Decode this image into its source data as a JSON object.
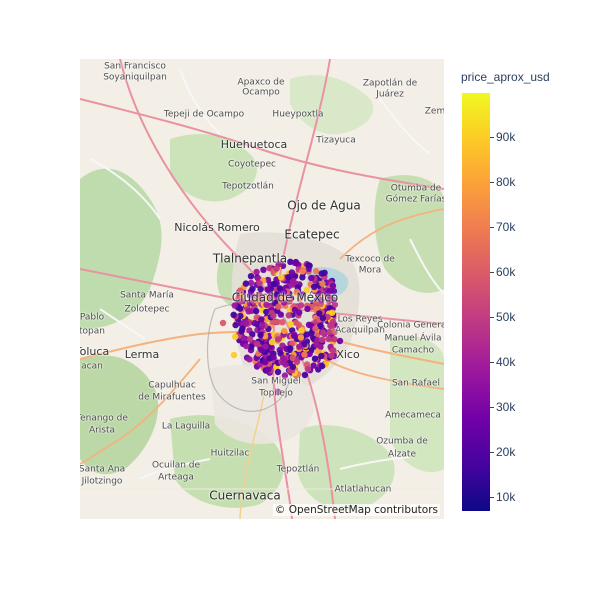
{
  "map": {
    "attribution": "© OpenStreetMap contributors",
    "labels": [
      {
        "text": "San Francisco",
        "cls": ""
      },
      {
        "text": "Soyaniquilpan",
        "cls": ""
      },
      {
        "text": "Apaxco de",
        "cls": ""
      },
      {
        "text": "Ocampo",
        "cls": ""
      },
      {
        "text": "Zapotlán de",
        "cls": ""
      },
      {
        "text": "Juárez",
        "cls": ""
      },
      {
        "text": "Tepeji de Ocampo",
        "cls": ""
      },
      {
        "text": "Hueypoxtla",
        "cls": ""
      },
      {
        "text": "Zem",
        "cls": ""
      },
      {
        "text": "Huehuetoca",
        "cls": "big"
      },
      {
        "text": "Tizayuca",
        "cls": ""
      },
      {
        "text": "Coyotepec",
        "cls": ""
      },
      {
        "text": "Tepotzotlán",
        "cls": ""
      },
      {
        "text": "Otumba de",
        "cls": ""
      },
      {
        "text": "Gómez Farías",
        "cls": ""
      },
      {
        "text": "Ojo de Agua",
        "cls": "xl"
      },
      {
        "text": "Nicolás Romero",
        "cls": "big"
      },
      {
        "text": "Ecatepec",
        "cls": "xl"
      },
      {
        "text": "Tlalnepantla",
        "cls": "xl"
      },
      {
        "text": "Texcoco de",
        "cls": ""
      },
      {
        "text": "Mora",
        "cls": ""
      },
      {
        "text": "Santa María",
        "cls": ""
      },
      {
        "text": "Zolotepec",
        "cls": ""
      },
      {
        "text": "Ciudad de México",
        "cls": "xl"
      },
      {
        "text": "Los Reyes",
        "cls": ""
      },
      {
        "text": "Acaquilpan",
        "cls": ""
      },
      {
        "text": "Colonia General",
        "cls": ""
      },
      {
        "text": "Manuel Ávila",
        "cls": ""
      },
      {
        "text": "Camacho",
        "cls": ""
      },
      {
        "text": "Pablo",
        "cls": ""
      },
      {
        "text": "topan",
        "cls": ""
      },
      {
        "text": "Toluca",
        "cls": "big"
      },
      {
        "text": "Lerma",
        "cls": "big"
      },
      {
        "text": "Xico",
        "cls": "big"
      },
      {
        "text": "acan",
        "cls": ""
      },
      {
        "text": "Capulhuac",
        "cls": ""
      },
      {
        "text": "de Mirafuentes",
        "cls": ""
      },
      {
        "text": "San Miguel",
        "cls": ""
      },
      {
        "text": "Topilejo",
        "cls": ""
      },
      {
        "text": "San Rafael",
        "cls": ""
      },
      {
        "text": "Tenango de",
        "cls": ""
      },
      {
        "text": "Arista",
        "cls": ""
      },
      {
        "text": "La Laguilla",
        "cls": ""
      },
      {
        "text": "Amecameca",
        "cls": ""
      },
      {
        "text": "Ozumba de",
        "cls": ""
      },
      {
        "text": "Alzate",
        "cls": ""
      },
      {
        "text": "Huitzilac",
        "cls": ""
      },
      {
        "text": "Santa Ana",
        "cls": ""
      },
      {
        "text": "Jilotzingo",
        "cls": ""
      },
      {
        "text": "Ocuilan de",
        "cls": ""
      },
      {
        "text": "Arteaga",
        "cls": ""
      },
      {
        "text": "Tepoztlán",
        "cls": ""
      },
      {
        "text": "Atlatlahucan",
        "cls": ""
      },
      {
        "text": "Cuernavaca",
        "cls": "xl"
      }
    ]
  },
  "colorbar": {
    "title": "price_aprox_usd",
    "min": 7500,
    "max": 100000,
    "ticks": [
      {
        "value": 10000,
        "label": "10k"
      },
      {
        "value": 20000,
        "label": "20k"
      },
      {
        "value": 30000,
        "label": "30k"
      },
      {
        "value": 40000,
        "label": "40k"
      },
      {
        "value": 50000,
        "label": "50k"
      },
      {
        "value": 60000,
        "label": "60k"
      },
      {
        "value": 70000,
        "label": "70k"
      },
      {
        "value": 80000,
        "label": "80k"
      },
      {
        "value": 90000,
        "label": "90k"
      }
    ],
    "colors": [
      "#0d0887",
      "#46039f",
      "#7201a8",
      "#9c179e",
      "#bd3786",
      "#d8576b",
      "#ed7953",
      "#fb9f3a",
      "#fdca26",
      "#f0f921"
    ]
  }
}
